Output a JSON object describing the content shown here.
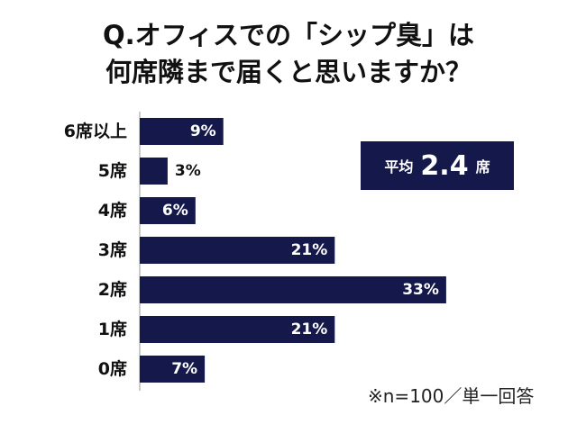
{
  "title_line1": "Q.オフィスでの「シップ臭」は",
  "title_line2": "何席隣まで届くと思いますか？",
  "average": {
    "label": "平均",
    "value": "2.4",
    "unit": "席"
  },
  "note": "※n=100／単一回答",
  "colors": {
    "bar": "#14184a",
    "axis": "#9a9a9a",
    "text": "#111111"
  },
  "chart_data": {
    "type": "bar",
    "orientation": "horizontal",
    "categories": [
      "6席以上",
      "5席",
      "4席",
      "3席",
      "2席",
      "1席",
      "0席"
    ],
    "values": [
      9,
      3,
      6,
      21,
      33,
      21,
      7
    ],
    "data_labels": [
      "9%",
      "3%",
      "6%",
      "21%",
      "33%",
      "21%",
      "7%"
    ],
    "title": "Q.オフィスでの「シップ臭」は 何席隣まで届くと思いますか？",
    "xlim": [
      0,
      40
    ],
    "grid": false,
    "legend": "none"
  }
}
